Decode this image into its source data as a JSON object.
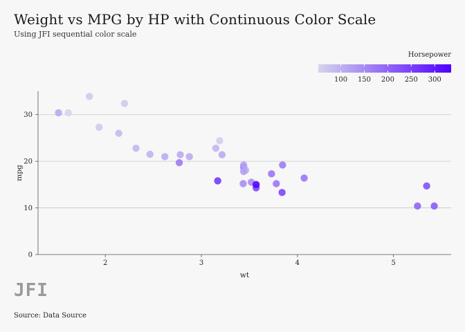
{
  "chart_data": {
    "type": "scatter",
    "title": "Weight vs MPG by HP with Continuous Color Scale",
    "subtitle": "Using JFI sequential color scale",
    "xlabel": "wt",
    "ylabel": "mpg",
    "xlim": [
      1.3,
      5.6
    ],
    "ylim": [
      0,
      35
    ],
    "xticks": [
      2,
      3,
      4,
      5
    ],
    "yticks": [
      0,
      10,
      20,
      30
    ],
    "grid": "horizontal",
    "legend": {
      "title": "Horsepower",
      "position": "top-right",
      "range": [
        52,
        335
      ],
      "ticks": [
        100,
        150,
        200,
        250,
        300
      ],
      "color_low": "#d6d4ec",
      "color_high": "#5000ff"
    },
    "points": [
      {
        "x": 2.62,
        "y": 21.0,
        "hp": 110
      },
      {
        "x": 2.875,
        "y": 21.0,
        "hp": 110
      },
      {
        "x": 2.32,
        "y": 22.8,
        "hp": 93
      },
      {
        "x": 3.215,
        "y": 21.4,
        "hp": 110
      },
      {
        "x": 3.44,
        "y": 18.7,
        "hp": 175
      },
      {
        "x": 3.46,
        "y": 18.1,
        "hp": 105
      },
      {
        "x": 3.57,
        "y": 14.3,
        "hp": 245
      },
      {
        "x": 3.19,
        "y": 24.4,
        "hp": 62
      },
      {
        "x": 3.15,
        "y": 22.8,
        "hp": 95
      },
      {
        "x": 3.44,
        "y": 19.2,
        "hp": 123
      },
      {
        "x": 3.44,
        "y": 17.8,
        "hp": 123
      },
      {
        "x": 4.07,
        "y": 16.4,
        "hp": 180
      },
      {
        "x": 3.73,
        "y": 17.3,
        "hp": 180
      },
      {
        "x": 3.78,
        "y": 15.2,
        "hp": 180
      },
      {
        "x": 5.25,
        "y": 10.4,
        "hp": 205
      },
      {
        "x": 5.424,
        "y": 10.4,
        "hp": 215
      },
      {
        "x": 5.345,
        "y": 14.7,
        "hp": 230
      },
      {
        "x": 2.2,
        "y": 32.4,
        "hp": 66
      },
      {
        "x": 1.615,
        "y": 30.4,
        "hp": 52
      },
      {
        "x": 1.835,
        "y": 33.9,
        "hp": 65
      },
      {
        "x": 2.465,
        "y": 21.5,
        "hp": 97
      },
      {
        "x": 3.52,
        "y": 15.5,
        "hp": 150
      },
      {
        "x": 3.435,
        "y": 15.2,
        "hp": 150
      },
      {
        "x": 3.84,
        "y": 13.3,
        "hp": 245
      },
      {
        "x": 3.845,
        "y": 19.2,
        "hp": 175
      },
      {
        "x": 1.935,
        "y": 27.3,
        "hp": 66
      },
      {
        "x": 2.14,
        "y": 26.0,
        "hp": 91
      },
      {
        "x": 1.513,
        "y": 30.4,
        "hp": 113
      },
      {
        "x": 3.17,
        "y": 15.8,
        "hp": 264
      },
      {
        "x": 2.77,
        "y": 19.7,
        "hp": 175
      },
      {
        "x": 3.57,
        "y": 15.0,
        "hp": 335
      },
      {
        "x": 2.78,
        "y": 21.4,
        "hp": 109
      }
    ]
  },
  "logo_text": "JFI",
  "source": "Source: Data Source"
}
